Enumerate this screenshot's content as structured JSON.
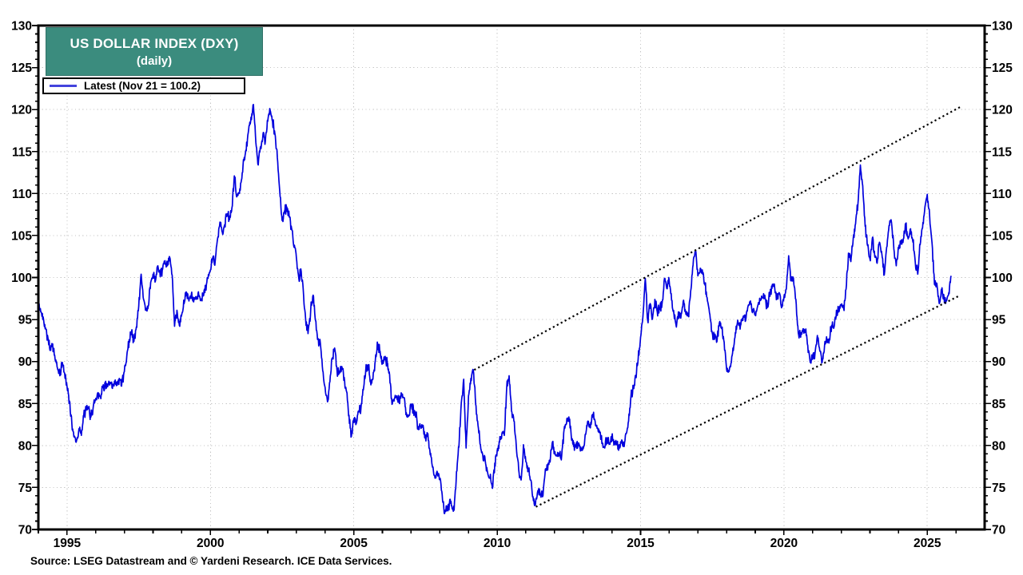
{
  "header": {
    "title": "US DOLLAR INDEX (DXY)",
    "subtitle": "(daily)",
    "title_bg": "#3B8C7E",
    "title_color": "#ffffff"
  },
  "legend": {
    "label": "Latest (Nov 21 = 100.2)",
    "swatch_color": "#4444DD"
  },
  "footer": {
    "source": "Source: LSEG Datastream and © Yardeni Research. ICE Data Services."
  },
  "chart_data": {
    "type": "line",
    "title": "US DOLLAR INDEX (DXY) (daily)",
    "xlim": [
      1994,
      2027
    ],
    "ylim": [
      70,
      130
    ],
    "x_ticks": [
      1995,
      2000,
      2005,
      2010,
      2015,
      2020,
      2025
    ],
    "x_tick_labels": [
      "1995",
      "2000",
      "2005",
      "2010",
      "2015",
      "2020",
      "2025"
    ],
    "y_ticks": [
      70,
      75,
      80,
      85,
      90,
      95,
      100,
      105,
      110,
      115,
      120,
      125,
      130
    ],
    "x_minor_step": 1,
    "y_minor_step": 1,
    "grid": {
      "show": true,
      "style": "dotted",
      "color": "#c4c4c4"
    },
    "axis_color": "#000000",
    "latest": {
      "date": "Nov 21",
      "value": 100.2
    },
    "annotations": [
      {
        "type": "trendline",
        "style": "dotted",
        "color": "#000000",
        "from": [
          2009.2,
          89.0
        ],
        "to": [
          2026.2,
          120.4
        ]
      },
      {
        "type": "trendline",
        "style": "dotted",
        "color": "#000000",
        "from": [
          2011.35,
          72.7
        ],
        "to": [
          2026.1,
          97.8
        ]
      }
    ],
    "series": [
      {
        "name": "DXY daily",
        "color": "#0000DD",
        "x_unit": "decimal_year",
        "x_start": 1994.0,
        "x_step_months": 1,
        "values": [
          96.8,
          95.9,
          95.3,
          94.0,
          92.8,
          91.4,
          92.1,
          90.3,
          89.2,
          88.3,
          89.9,
          88.6,
          87.0,
          85.3,
          82.6,
          81.0,
          80.6,
          82.0,
          81.2,
          83.6,
          84.2,
          84.4,
          83.4,
          84.7,
          85.6,
          86.3,
          85.8,
          86.9,
          87.3,
          87.0,
          87.4,
          86.8,
          87.5,
          87.2,
          87.8,
          87.6,
          88.8,
          90.6,
          92.6,
          93.6,
          92.4,
          94.1,
          96.6,
          100.4,
          97.4,
          96.1,
          96.6,
          99.4,
          100.4,
          99.6,
          101.4,
          100.1,
          101.0,
          102.0,
          101.4,
          102.4,
          100.3,
          94.2,
          96.1,
          94.3,
          95.6,
          96.9,
          98.2,
          97.2,
          98.0,
          97.1,
          97.6,
          98.3,
          97.3,
          97.8,
          98.9,
          99.9,
          100.9,
          102.4,
          102.0,
          104.6,
          106.6,
          105.4,
          106.3,
          107.6,
          106.9,
          108.3,
          112.1,
          109.6,
          110.0,
          111.6,
          113.9,
          115.1,
          117.6,
          119.1,
          120.6,
          116.1,
          113.4,
          115.6,
          117.1,
          116.2,
          118.6,
          119.9,
          118.6,
          117.1,
          114.3,
          110.3,
          106.8,
          107.9,
          108.4,
          107.2,
          105.8,
          103.6,
          102.3,
          99.9,
          100.7,
          97.8,
          94.3,
          93.9,
          96.2,
          97.9,
          94.9,
          92.6,
          92.2,
          88.9,
          86.9,
          85.2,
          87.6,
          90.4,
          91.6,
          88.9,
          88.6,
          89.4,
          88.1,
          86.4,
          83.6,
          81.1,
          83.2,
          82.6,
          84.1,
          84.4,
          86.6,
          88.9,
          89.6,
          87.6,
          87.9,
          90.1,
          92.0,
          91.2,
          89.9,
          90.4,
          89.9,
          88.4,
          84.9,
          85.6,
          85.9,
          85.1,
          85.9,
          85.7,
          83.9,
          83.5,
          84.9,
          84.2,
          83.6,
          81.9,
          82.3,
          82.4,
          80.9,
          81.4,
          78.9,
          77.4,
          76.1,
          76.8,
          76.1,
          74.1,
          71.9,
          72.6,
          73.1,
          72.8,
          72.3,
          76.9,
          79.8,
          85.1,
          87.9,
          79.7,
          85.9,
          88.0,
          89.0,
          84.9,
          82.4,
          80.1,
          78.8,
          78.2,
          76.8,
          76.1,
          74.9,
          77.9,
          79.4,
          80.4,
          81.4,
          81.2,
          86.9,
          88.3,
          84.1,
          82.9,
          79.9,
          77.1,
          75.9,
          80.1,
          78.1,
          77.2,
          75.9,
          73.9,
          72.9,
          74.6,
          74.1,
          73.9,
          76.6,
          77.4,
          78.1,
          80.2,
          79.2,
          78.8,
          79.1,
          78.8,
          81.9,
          82.6,
          83.4,
          81.2,
          79.9,
          80.1,
          80.3,
          79.8,
          79.6,
          81.3,
          82.9,
          82.1,
          83.7,
          82.9,
          82.1,
          81.6,
          80.3,
          79.7,
          80.9,
          80.2,
          81.1,
          80.3,
          80.1,
          79.8,
          80.4,
          79.9,
          81.4,
          82.9,
          85.9,
          86.9,
          88.3,
          90.3,
          92.9,
          95.3,
          99.9,
          94.9,
          96.9,
          95.1,
          97.4,
          95.9,
          96.2,
          96.9,
          99.9,
          98.7,
          99.6,
          97.3,
          95.6,
          94.1,
          95.9,
          95.6,
          97.3,
          95.6,
          95.4,
          98.4,
          101.5,
          103.2,
          100.2,
          101.1,
          100.4,
          99.1,
          97.2,
          95.6,
          93.4,
          92.7,
          92.4,
          94.6,
          93.9,
          92.3,
          89.1,
          88.8,
          89.9,
          91.8,
          94.2,
          94.5,
          94.4,
          95.4,
          94.9,
          96.6,
          97.2,
          96.2,
          95.6,
          96.6,
          97.3,
          97.6,
          97.9,
          96.4,
          98.1,
          98.7,
          99.2,
          97.4,
          98.2,
          96.4,
          97.6,
          98.6,
          102.6,
          99.6,
          99.9,
          97.4,
          93.4,
          92.9,
          93.9,
          93.6,
          91.9,
          89.9,
          90.6,
          90.9,
          93.1,
          91.3,
          89.9,
          91.9,
          92.4,
          92.7,
          94.3,
          94.1,
          96.1,
          95.9,
          96.7,
          96.3,
          98.6,
          102.9,
          101.9,
          104.7,
          106.4,
          108.8,
          113.4,
          110.9,
          106.1,
          103.8,
          102.2,
          104.7,
          102.5,
          101.7,
          104.2,
          102.8,
          100.3,
          103.6,
          106.2,
          106.6,
          103.4,
          101.4,
          103.4,
          104.1,
          104.6,
          106.2,
          104.6,
          105.8,
          104.2,
          101.7,
          100.4,
          103.9,
          105.9,
          108.4,
          109.9,
          107.3,
          104.1,
          99.2,
          99.3,
          96.9,
          98.6,
          97.7,
          97.2,
          98.2,
          100.2
        ]
      }
    ]
  }
}
